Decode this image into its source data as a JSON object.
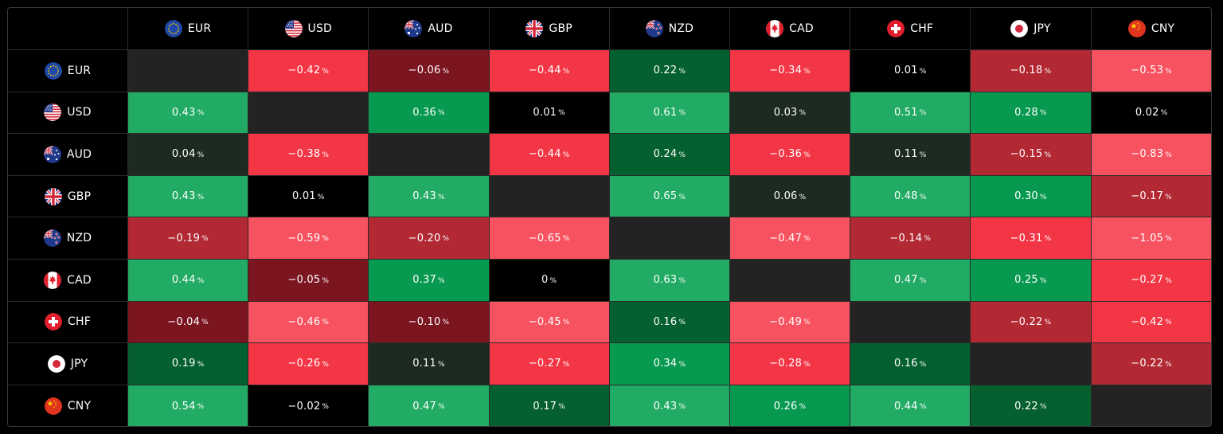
{
  "currencies": [
    "EUR",
    "USD",
    "AUD",
    "GBP",
    "NZD",
    "CAD",
    "CHF",
    "JPY",
    "CNY"
  ],
  "flag_icons": [
    "eu-flag-icon",
    "us-flag-icon",
    "au-flag-icon",
    "gb-flag-icon",
    "nz-flag-icon",
    "ca-flag-icon",
    "ch-flag-icon",
    "jp-flag-icon",
    "cn-flag-icon"
  ],
  "percent_symbol": "%",
  "matrix": [
    [
      null,
      "−0.42",
      "−0.06",
      "−0.44",
      "0.22",
      "−0.34",
      "0.01",
      "−0.18",
      "−0.53"
    ],
    [
      "0.43",
      null,
      "0.36",
      "0.01",
      "0.61",
      "0.03",
      "0.51",
      "0.28",
      "0.02"
    ],
    [
      "0.04",
      "−0.38",
      null,
      "−0.44",
      "0.24",
      "−0.36",
      "0.11",
      "−0.15",
      "−0.83"
    ],
    [
      "0.43",
      "0.01",
      "0.43",
      null,
      "0.65",
      "0.06",
      "0.48",
      "0.30",
      "−0.17"
    ],
    [
      "−0.19",
      "−0.59",
      "−0.20",
      "−0.65",
      null,
      "−0.47",
      "−0.14",
      "−0.31",
      "−1.05"
    ],
    [
      "0.44",
      "−0.05",
      "0.37",
      "0",
      "0.63",
      null,
      "0.47",
      "0.25",
      "−0.27"
    ],
    [
      "−0.04",
      "−0.46",
      "−0.10",
      "−0.45",
      "0.16",
      "−0.49",
      null,
      "−0.22",
      "−0.42"
    ],
    [
      "0.19",
      "−0.26",
      "0.11",
      "−0.27",
      "0.34",
      "−0.28",
      "0.16",
      null,
      "−0.22"
    ],
    [
      "0.54",
      "−0.02",
      "0.47",
      "0.17",
      "0.43",
      "0.26",
      "0.44",
      "0.22",
      null
    ]
  ],
  "colors": {
    "self": "#232323",
    "neutral": "#000000",
    "green_dark": "#1c2a22",
    "green_1": "#05602f",
    "green_2": "#089950",
    "green_3": "#22ab64",
    "red_dark": "#7b1520",
    "red_1": "#b22833",
    "red_2": "#f23645",
    "red_3": "#f7525f"
  }
}
